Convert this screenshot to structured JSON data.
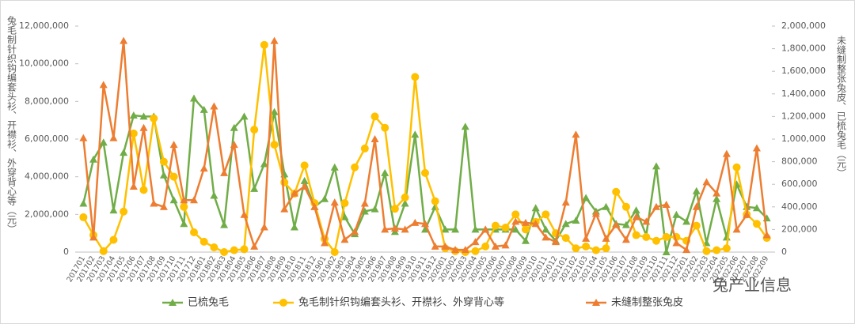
{
  "chart_data": {
    "type": "line",
    "y_label": "兔毛制针织钩编套头衫、开襟衫、外穿背心等（元）",
    "y2_label": "未缝制整张兔皮、已梳兔毛（元）",
    "watermark": "兔产业信息",
    "categories": [
      "201701",
      "201702",
      "201703",
      "201704",
      "201705",
      "201706",
      "201707",
      "201708",
      "201709",
      "201710",
      "201711",
      "201712",
      "201801",
      "201802",
      "201803",
      "201804",
      "201805",
      "201806",
      "201807",
      "201808",
      "201809",
      "201810",
      "201811",
      "201812",
      "201901",
      "201902",
      "201903",
      "201904",
      "201905",
      "201906",
      "201907",
      "201908",
      "201909",
      "201910",
      "201911",
      "201912",
      "202001",
      "202002",
      "202003",
      "202004",
      "202005",
      "202006",
      "202007",
      "202008",
      "202009",
      "202010",
      "202011",
      "202012",
      "202101",
      "202102",
      "202103",
      "202104",
      "202105",
      "202106",
      "202107",
      "202108",
      "202109",
      "202110",
      "202111",
      "202112",
      "202201",
      "202202",
      "202203",
      "202204",
      "202205",
      "202206",
      "202207",
      "202208",
      "202209"
    ],
    "series": [
      {
        "name": "已梳兔毛",
        "color": "#70ad47",
        "marker": "triangle",
        "axis": "y2",
        "values": [
          430000,
          820000,
          970000,
          370000,
          880000,
          1210000,
          1200000,
          1200000,
          680000,
          460000,
          250000,
          1360000,
          1260000,
          500000,
          240000,
          1100000,
          1200000,
          560000,
          780000,
          1240000,
          690000,
          220000,
          630000,
          400000,
          470000,
          750000,
          310000,
          160000,
          360000,
          380000,
          700000,
          180000,
          430000,
          1040000,
          200000,
          400000,
          200000,
          200000,
          1110000,
          200000,
          200000,
          200000,
          200000,
          200000,
          100000,
          390000,
          200000,
          100000,
          250000,
          280000,
          480000,
          360000,
          400000,
          250000,
          240000,
          370000,
          150000,
          760000,
          0,
          330000,
          270000,
          540000,
          80000,
          470000,
          130000,
          600000,
          400000,
          390000,
          300000
        ]
      },
      {
        "name": "兔毛制针织钩编套头衫、开襟衫、外穿背心等",
        "color": "#ffc000",
        "marker": "circle",
        "axis": "y",
        "values": [
          1850000,
          900000,
          50000,
          650000,
          2150000,
          6300000,
          3300000,
          7100000,
          4800000,
          4000000,
          2400000,
          1050000,
          550000,
          250000,
          0,
          100000,
          150000,
          6500000,
          11000000,
          5700000,
          3700000,
          3100000,
          4600000,
          2600000,
          700000,
          0,
          2600000,
          4500000,
          5500000,
          7200000,
          6600000,
          2300000,
          2900000,
          9300000,
          4200000,
          2700000,
          200000,
          50000,
          0,
          50000,
          300000,
          1400000,
          1300000,
          2000000,
          1200000,
          1600000,
          2000000,
          1000000,
          750000,
          200000,
          300000,
          100000,
          200000,
          3200000,
          2400000,
          900000,
          800000,
          600000,
          800000,
          800000,
          600000,
          1400000,
          50000,
          100000,
          200000,
          4500000,
          2000000,
          1500000,
          750000
        ]
      },
      {
        "name": "未缝制整张兔皮",
        "color": "#ed7d31",
        "marker": "triangle",
        "axis": "y2",
        "values": [
          1010000,
          130000,
          1480000,
          1010000,
          1870000,
          580000,
          1100000,
          430000,
          400000,
          950000,
          460000,
          460000,
          740000,
          1290000,
          700000,
          950000,
          330000,
          50000,
          220000,
          1870000,
          380000,
          520000,
          580000,
          400000,
          80000,
          440000,
          110000,
          180000,
          430000,
          1000000,
          200000,
          210000,
          200000,
          260000,
          250000,
          50000,
          50000,
          20000,
          20000,
          90000,
          200000,
          50000,
          60000,
          270000,
          260000,
          250000,
          130000,
          90000,
          440000,
          1040000,
          120000,
          340000,
          120000,
          240000,
          110000,
          310000,
          270000,
          400000,
          420000,
          80000,
          20000,
          400000,
          620000,
          520000,
          870000,
          200000,
          330000,
          920000,
          150000
        ]
      }
    ],
    "ylim": [
      0,
      12000000
    ],
    "yticks": [
      0,
      {
        "value": 2000000,
        "label": "2,000,000"
      },
      {
        "value": 4000000,
        "label": "4,000,000"
      },
      {
        "value": 6000000,
        "label": "6,000,000"
      },
      {
        "value": 8000000,
        "label": "8,000,000"
      },
      {
        "value": 10000000,
        "label": "10,000,000"
      },
      {
        "value": 12000000,
        "label": "12,000,000"
      }
    ],
    "y2lim": [
      0,
      2000000
    ],
    "y2ticks": [
      0,
      {
        "value": 200000,
        "label": "200,000"
      },
      {
        "value": 400000,
        "label": "400,000"
      },
      {
        "value": 600000,
        "label": "600,000"
      },
      {
        "value": 800000,
        "label": "800,000"
      },
      {
        "value": 1000000,
        "label": "1,000,000"
      },
      {
        "value": 1200000,
        "label": "1,200,000"
      },
      {
        "value": 1400000,
        "label": "1,400,000"
      },
      {
        "value": 1600000,
        "label": "1,600,000"
      },
      {
        "value": 1800000,
        "label": "1,800,000"
      },
      {
        "value": {
          "value": 2000000
        },
        "label": "2,000,000"
      }
    ],
    "legend": "bottom",
    "grid": false
  }
}
